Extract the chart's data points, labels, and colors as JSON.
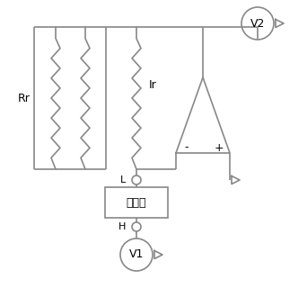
{
  "bg_color": "#ffffff",
  "line_color": "#888888",
  "line_width": 1.2,
  "text_color": "#000000",
  "resistor_label_rr": "Rr",
  "resistor_label_ir": "Ir",
  "battery_label": "锂电池",
  "v1_label": "V1",
  "v2_label": "V2",
  "L_label": "L",
  "H_label": "H",
  "minus_label": "-",
  "plus_label": "+",
  "figsize": [
    3.42,
    3.2
  ],
  "dpi": 100
}
